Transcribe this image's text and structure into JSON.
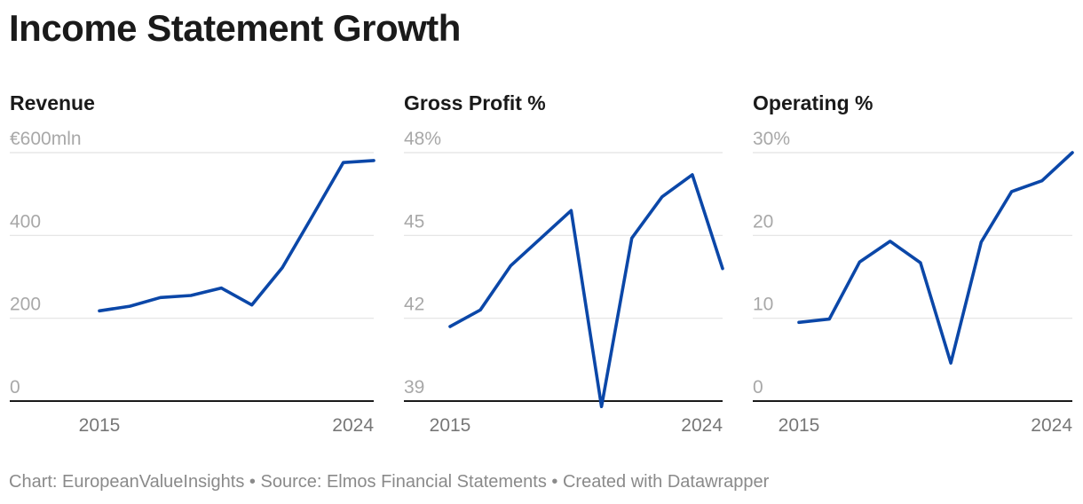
{
  "title": "Income Statement Growth",
  "footer": {
    "chart_credit": "Chart: EuropeanValueInsights",
    "separator": " • ",
    "source": "Source: Elmos Financial Statements",
    "tool": "Created with Datawrapper"
  },
  "colors": {
    "line": "#0b47a8",
    "grid": "#e2e2e2",
    "axis_text": "#a8a8a8"
  },
  "chart_data": [
    {
      "type": "line",
      "title": "Revenue",
      "x": [
        2015,
        2016,
        2017,
        2018,
        2019,
        2020,
        2021,
        2022,
        2023,
        2024
      ],
      "values": [
        218,
        229,
        250,
        255,
        273,
        232,
        322,
        448,
        576,
        581
      ],
      "ylim": [
        0,
        600
      ],
      "yticks": [
        0,
        200,
        400,
        600
      ],
      "ytick_labels": [
        "0",
        "200",
        "400",
        "€600mln"
      ],
      "xtick_labels": [
        "2015",
        "2024"
      ],
      "xtick_values": [
        2015,
        2024
      ]
    },
    {
      "type": "line",
      "title": "Gross Profit %",
      "x": [
        2015,
        2016,
        2017,
        2018,
        2019,
        2020,
        2021,
        2022,
        2023,
        2024
      ],
      "values": [
        41.7,
        42.3,
        43.9,
        44.9,
        45.9,
        38.8,
        44.9,
        46.4,
        47.2,
        43.8
      ],
      "ylim": [
        39,
        48
      ],
      "yticks": [
        39,
        42,
        45,
        48
      ],
      "ytick_labels": [
        "39",
        "42",
        "45",
        "48%"
      ],
      "xtick_labels": [
        "2015",
        "2024"
      ],
      "xtick_values": [
        2015,
        2024
      ]
    },
    {
      "type": "line",
      "title": "Operating %",
      "x": [
        2015,
        2016,
        2017,
        2018,
        2019,
        2020,
        2021,
        2022,
        2023,
        2024
      ],
      "values": [
        9.5,
        9.9,
        16.8,
        19.3,
        16.7,
        4.6,
        19.2,
        25.3,
        26.6,
        30
      ],
      "ylim": [
        0,
        30
      ],
      "yticks": [
        0,
        10,
        20,
        30
      ],
      "ytick_labels": [
        "0",
        "10",
        "20",
        "30%"
      ],
      "xtick_labels": [
        "2015",
        "2024"
      ],
      "xtick_values": [
        2015,
        2024
      ]
    }
  ]
}
